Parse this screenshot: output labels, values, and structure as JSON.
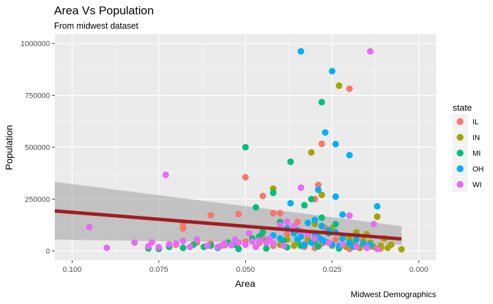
{
  "chart_data": {
    "type": "scatter",
    "title": "Area Vs Population",
    "subtitle": "From midwest dataset",
    "caption": "Midwest Demographics",
    "xlabel": "Area",
    "ylabel": "Population",
    "x_reversed": true,
    "xlim": [
      0.105,
      -0.005
    ],
    "ylim": [
      -45000,
      1045000
    ],
    "x_ticks": [
      0.1,
      0.075,
      0.05,
      0.025,
      0.0
    ],
    "x_tick_labels": [
      "0.100",
      "0.075",
      "0.050",
      "0.025",
      "0.000"
    ],
    "y_ticks": [
      0,
      250000,
      500000,
      750000,
      1000000
    ],
    "y_tick_labels": [
      "0",
      "250000",
      "500000",
      "750000",
      "1000000"
    ],
    "legend": {
      "title": "state",
      "position": "right",
      "entries": [
        {
          "label": "IL",
          "color": "#F8766D"
        },
        {
          "label": "IN",
          "color": "#A3A500"
        },
        {
          "label": "MI",
          "color": "#00BF7D"
        },
        {
          "label": "OH",
          "color": "#00B0F6"
        },
        {
          "label": "WI",
          "color": "#E76BF3"
        }
      ]
    },
    "smooth": {
      "color": "#A11D21",
      "band_color": "#999999",
      "x": [
        0.105,
        0.005
      ],
      "y": [
        193000,
        58000
      ],
      "band_lower": [
        55000,
        30000
      ],
      "band_upper": [
        333000,
        120000
      ]
    },
    "series": [
      {
        "name": "IL",
        "color": "#F8766D",
        "points": [
          [
            0.02,
            782000
          ],
          [
            0.028,
            516000
          ],
          [
            0.029,
            318000
          ],
          [
            0.03,
            250000
          ],
          [
            0.05,
            355000
          ],
          [
            0.045,
            265000
          ],
          [
            0.052,
            178000
          ],
          [
            0.06,
            172000
          ],
          [
            0.068,
            125000
          ],
          [
            0.068,
            108000
          ],
          [
            0.042,
            182000
          ],
          [
            0.04,
            182000
          ],
          [
            0.035,
            140000
          ],
          [
            0.027,
            110000
          ],
          [
            0.038,
            80000
          ],
          [
            0.045,
            62000
          ],
          [
            0.05,
            45000
          ],
          [
            0.032,
            50000
          ],
          [
            0.026,
            40000
          ],
          [
            0.022,
            30000
          ],
          [
            0.018,
            25000
          ],
          [
            0.015,
            20000
          ],
          [
            0.06,
            35000
          ],
          [
            0.056,
            28000
          ],
          [
            0.064,
            40000
          ],
          [
            0.07,
            30000
          ],
          [
            0.042,
            25000
          ],
          [
            0.03,
            15000
          ],
          [
            0.02,
            10000
          ],
          [
            0.033,
            20000
          ],
          [
            0.028,
            35000
          ],
          [
            0.024,
            55000
          ],
          [
            0.046,
            38000
          ],
          [
            0.011,
            12000
          ],
          [
            0.014,
            22000
          ]
        ]
      },
      {
        "name": "IN",
        "color": "#A3A500",
        "points": [
          [
            0.023,
            797000
          ],
          [
            0.031,
            475000
          ],
          [
            0.042,
            300000
          ],
          [
            0.028,
            270000
          ],
          [
            0.012,
            165000
          ],
          [
            0.03,
            130000
          ],
          [
            0.025,
            110000
          ],
          [
            0.018,
            90000
          ],
          [
            0.015,
            80000
          ],
          [
            0.022,
            70000
          ],
          [
            0.02,
            60000
          ],
          [
            0.016,
            50000
          ],
          [
            0.01,
            60000
          ],
          [
            0.008,
            30000
          ],
          [
            0.005,
            8000
          ],
          [
            0.013,
            20000
          ],
          [
            0.017,
            15000
          ],
          [
            0.025,
            25000
          ],
          [
            0.035,
            40000
          ],
          [
            0.04,
            30000
          ],
          [
            0.038,
            55000
          ],
          [
            0.019,
            35000
          ],
          [
            0.014,
            40000
          ],
          [
            0.011,
            25000
          ],
          [
            0.009,
            15000
          ],
          [
            0.021,
            20000
          ],
          [
            0.027,
            45000
          ],
          [
            0.032,
            60000
          ],
          [
            0.036,
            25000
          ]
        ]
      },
      {
        "name": "MI",
        "color": "#00BF7D",
        "points": [
          [
            0.028,
            717000
          ],
          [
            0.05,
            500000
          ],
          [
            0.037,
            430000
          ],
          [
            0.042,
            280000
          ],
          [
            0.031,
            250000
          ],
          [
            0.033,
            220000
          ],
          [
            0.047,
            210000
          ],
          [
            0.028,
            160000
          ],
          [
            0.04,
            140000
          ],
          [
            0.045,
            90000
          ],
          [
            0.048,
            60000
          ],
          [
            0.055,
            40000
          ],
          [
            0.06,
            25000
          ],
          [
            0.065,
            30000
          ],
          [
            0.068,
            15000
          ],
          [
            0.072,
            20000
          ],
          [
            0.078,
            12000
          ],
          [
            0.075,
            10000
          ],
          [
            0.058,
            15000
          ],
          [
            0.052,
            10000
          ],
          [
            0.044,
            12000
          ],
          [
            0.038,
            18000
          ],
          [
            0.034,
            25000
          ],
          [
            0.03,
            45000
          ],
          [
            0.026,
            85000
          ],
          [
            0.024,
            130000
          ],
          [
            0.035,
            100000
          ],
          [
            0.046,
            70000
          ],
          [
            0.053,
            30000
          ],
          [
            0.062,
            20000
          ],
          [
            0.039,
            50000
          ],
          [
            0.029,
            22000
          ],
          [
            0.023,
            12000
          ]
        ]
      },
      {
        "name": "OH",
        "color": "#00B0F6",
        "points": [
          [
            0.034,
            962000
          ],
          [
            0.025,
            867000
          ],
          [
            0.027,
            571000
          ],
          [
            0.024,
            515000
          ],
          [
            0.02,
            462000
          ],
          [
            0.029,
            295000
          ],
          [
            0.024,
            262000
          ],
          [
            0.037,
            230000
          ],
          [
            0.012,
            215000
          ],
          [
            0.022,
            175000
          ],
          [
            0.03,
            150000
          ],
          [
            0.032,
            135000
          ],
          [
            0.028,
            120000
          ],
          [
            0.026,
            100000
          ],
          [
            0.024,
            90000
          ],
          [
            0.03,
            80000
          ],
          [
            0.034,
            70000
          ],
          [
            0.022,
            60000
          ],
          [
            0.018,
            55000
          ],
          [
            0.027,
            45000
          ],
          [
            0.035,
            55000
          ],
          [
            0.031,
            40000
          ],
          [
            0.025,
            30000
          ],
          [
            0.02,
            40000
          ],
          [
            0.016,
            35000
          ],
          [
            0.038,
            110000
          ],
          [
            0.04,
            60000
          ],
          [
            0.036,
            85000
          ],
          [
            0.033,
            30000
          ],
          [
            0.029,
            65000
          ],
          [
            0.023,
            25000
          ],
          [
            0.019,
            20000
          ],
          [
            0.042,
            75000
          ],
          [
            0.044,
            45000
          ],
          [
            0.028,
            55000
          ],
          [
            0.014,
            30000
          ]
        ]
      },
      {
        "name": "WI",
        "color": "#E76BF3",
        "points": [
          [
            0.014,
            962000
          ],
          [
            0.073,
            367000
          ],
          [
            0.034,
            305000
          ],
          [
            0.02,
            170000
          ],
          [
            0.095,
            115000
          ],
          [
            0.09,
            15000
          ],
          [
            0.082,
            40000
          ],
          [
            0.078,
            22000
          ],
          [
            0.077,
            42000
          ],
          [
            0.075,
            18000
          ],
          [
            0.072,
            32000
          ],
          [
            0.07,
            36000
          ],
          [
            0.068,
            48000
          ],
          [
            0.064,
            55000
          ],
          [
            0.061,
            25000
          ],
          [
            0.058,
            20000
          ],
          [
            0.056,
            35000
          ],
          [
            0.054,
            28000
          ],
          [
            0.052,
            40000
          ],
          [
            0.05,
            30000
          ],
          [
            0.048,
            45000
          ],
          [
            0.046,
            50000
          ],
          [
            0.044,
            40000
          ],
          [
            0.042,
            35000
          ],
          [
            0.04,
            125000
          ],
          [
            0.038,
            140000
          ],
          [
            0.036,
            120000
          ],
          [
            0.034,
            95000
          ],
          [
            0.032,
            80000
          ],
          [
            0.013,
            130000
          ],
          [
            0.049,
            85000
          ],
          [
            0.053,
            55000
          ],
          [
            0.057,
            25000
          ],
          [
            0.066,
            20000
          ],
          [
            0.03,
            60000
          ],
          [
            0.026,
            40000
          ],
          [
            0.022,
            30000
          ],
          [
            0.018,
            20000
          ],
          [
            0.015,
            15000
          ],
          [
            0.012,
            10000
          ],
          [
            0.047,
            20000
          ],
          [
            0.043,
            60000
          ],
          [
            0.039,
            25000
          ]
        ]
      }
    ]
  }
}
